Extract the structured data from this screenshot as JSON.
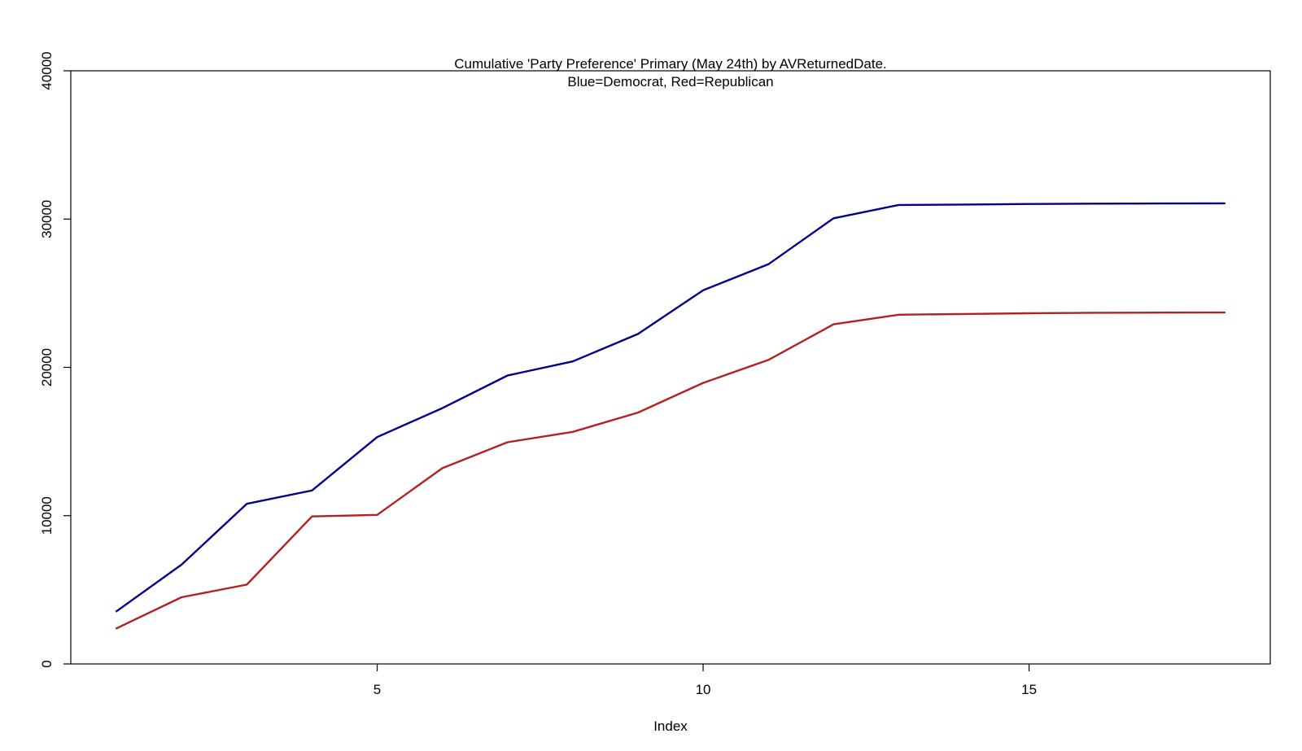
{
  "chart_data": {
    "type": "line",
    "title": "Cumulative 'Party Preference' Primary (May 24th) by AVReturnedDate.",
    "subtitle": "Blue=Democrat, Red=Republican",
    "xlabel": "Index",
    "ylabel": "",
    "x": [
      1,
      2,
      3,
      4,
      5,
      6,
      7,
      8,
      9,
      10,
      11,
      12,
      13,
      14,
      15,
      16,
      17,
      18
    ],
    "xlim": [
      0.3,
      18.7
    ],
    "ylim": [
      0,
      40000
    ],
    "xticks": [
      5,
      10,
      15
    ],
    "xtick_labels": [
      "5",
      "10",
      "15"
    ],
    "yticks": [
      0,
      10000,
      20000,
      30000,
      40000
    ],
    "ytick_labels": [
      "0",
      "10000",
      "20000",
      "30000",
      "40000"
    ],
    "grid": false,
    "legend": "none",
    "series": [
      {
        "key": "democrat",
        "color": "#00008B",
        "values": [
          3550,
          6700,
          10800,
          11700,
          15300,
          17250,
          19450,
          20400,
          22250,
          25200,
          26950,
          30050,
          30950,
          30980,
          31020,
          31040,
          31050,
          31060
        ]
      },
      {
        "key": "republican",
        "color": "#B22222",
        "values": [
          2400,
          4500,
          5350,
          9950,
          10050,
          13200,
          14950,
          15650,
          16950,
          18950,
          20500,
          22900,
          23550,
          23600,
          23650,
          23680,
          23690,
          23700
        ]
      }
    ]
  }
}
